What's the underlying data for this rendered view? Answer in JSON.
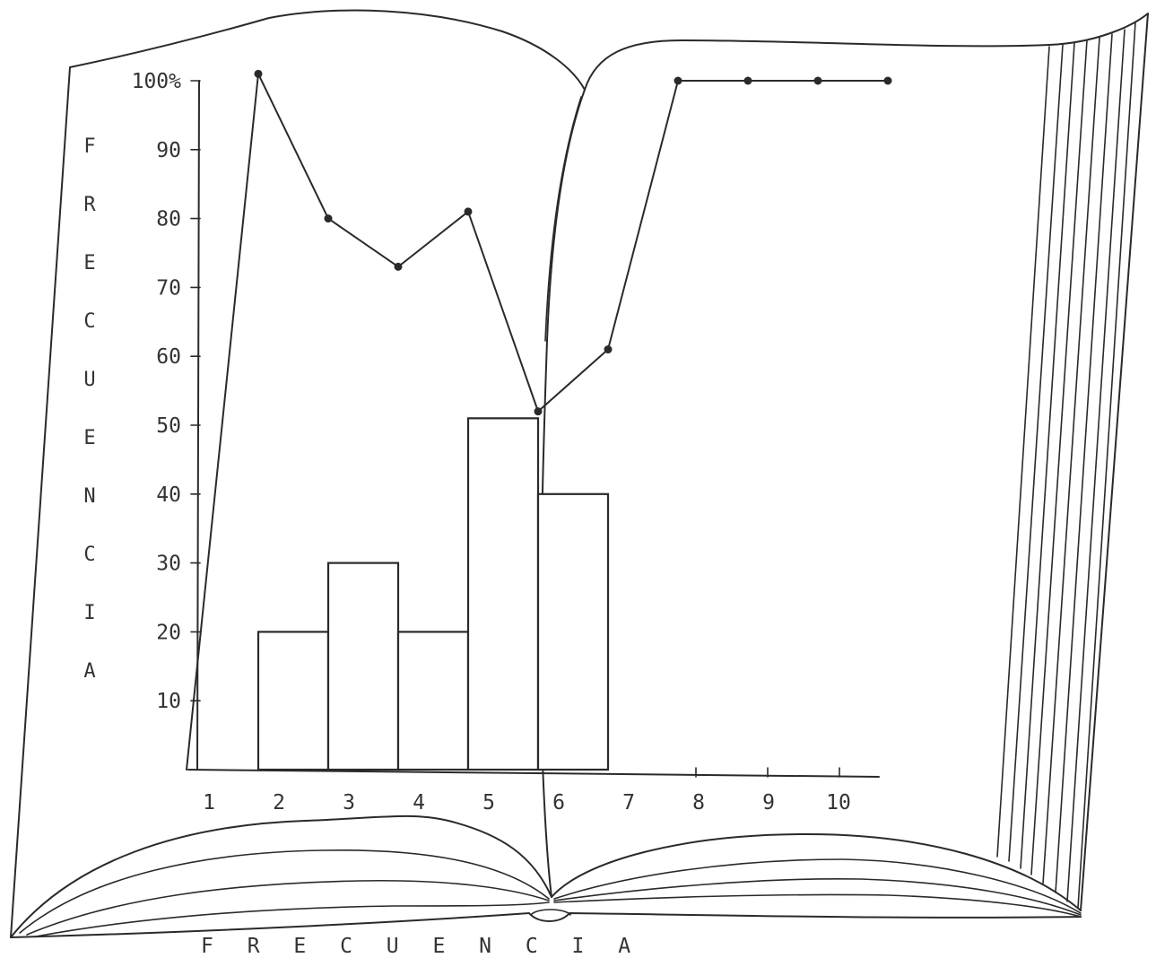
{
  "chart_data": {
    "type": "bar",
    "xlabel": "F R E C U E N C I A",
    "ylabel": "F R E C U E N C I A",
    "ylim": [
      0,
      100
    ],
    "y_ticks": [
      "10",
      "20",
      "30",
      "40",
      "50",
      "60",
      "70",
      "80",
      "90",
      "100%"
    ],
    "categories": [
      "1",
      "2",
      "3",
      "4",
      "5",
      "6",
      "7",
      "8",
      "9",
      "10"
    ],
    "bars": [
      {
        "x": 2,
        "value": 20
      },
      {
        "x": 3,
        "value": 30
      },
      {
        "x": 4,
        "value": 20
      },
      {
        "x": 5,
        "value": 51
      },
      {
        "x": 6,
        "value": 40
      }
    ],
    "line": [
      {
        "x": 1,
        "value": 0
      },
      {
        "x": 2,
        "value": 101
      },
      {
        "x": 3,
        "value": 80
      },
      {
        "x": 4,
        "value": 73
      },
      {
        "x": 5,
        "value": 81
      },
      {
        "x": 6,
        "value": 52
      },
      {
        "x": 7,
        "value": 61
      },
      {
        "x": 8,
        "value": 100
      },
      {
        "x": 9,
        "value": 100
      },
      {
        "x": 10,
        "value": 100
      },
      {
        "x": 11,
        "value": 100
      }
    ],
    "grid": false,
    "background_illustration": "open-book"
  }
}
